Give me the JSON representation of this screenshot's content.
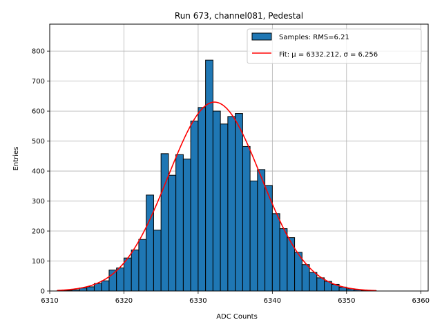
{
  "chart_data": {
    "type": "bar",
    "title": "Run 673, channel081, Pedestal",
    "xlabel": "ADC Counts",
    "ylabel": "Entries",
    "xlim": [
      6310,
      6361
    ],
    "ylim": [
      0,
      890
    ],
    "xticks": [
      6310,
      6320,
      6330,
      6340,
      6350,
      6360
    ],
    "yticks": [
      0,
      100,
      200,
      300,
      400,
      500,
      600,
      700,
      800
    ],
    "grid": true,
    "legend_position": "top-right",
    "histogram": {
      "bin_start": 6311,
      "bin_width": 1,
      "counts": [
        1,
        2,
        4,
        10,
        14,
        25,
        34,
        70,
        77,
        110,
        137,
        172,
        320,
        203,
        458,
        386,
        455,
        440,
        567,
        612,
        770,
        600,
        557,
        582,
        592,
        482,
        367,
        405,
        352,
        258,
        208,
        178,
        129,
        88,
        62,
        44,
        32,
        22,
        13,
        7,
        4,
        2,
        1
      ]
    },
    "series": [
      {
        "name": "Samples: RMS=6.21",
        "kind": "histogram",
        "color": "#1f77b4"
      },
      {
        "name": "Fit: μ = 6332.212, σ = 6.256",
        "kind": "fit",
        "color": "#ff0000",
        "mu": 6332.212,
        "sigma": 6.256,
        "amplitude": 630,
        "x_range": [
          6311,
          6354
        ]
      }
    ]
  }
}
